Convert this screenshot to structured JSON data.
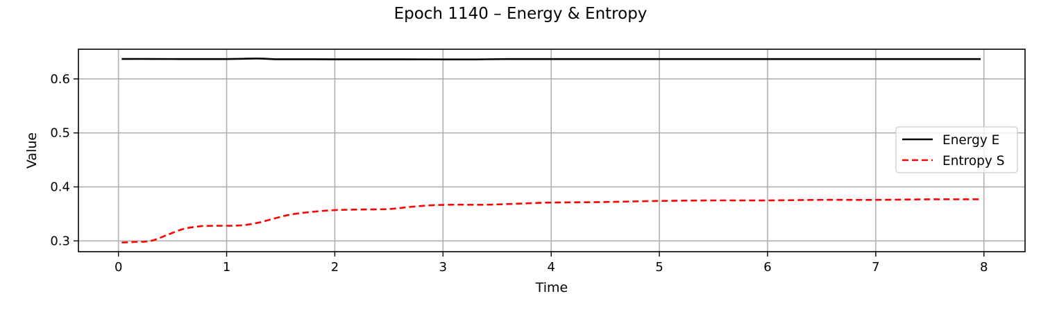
{
  "chart_data": {
    "type": "line",
    "title": "Epoch 1140 – Energy & Entropy",
    "xlabel": "Time",
    "ylabel": "Value",
    "xlim": [
      -0.37,
      8.38
    ],
    "ylim": [
      0.28,
      0.655
    ],
    "xticks": [
      0,
      1,
      2,
      3,
      4,
      5,
      6,
      7,
      8
    ],
    "xtick_labels": [
      "0",
      "1",
      "2",
      "3",
      "4",
      "5",
      "6",
      "7",
      "8"
    ],
    "yticks": [
      0.3,
      0.4,
      0.5,
      0.6
    ],
    "ytick_labels": [
      "0.3",
      "0.4",
      "0.5",
      "0.6"
    ],
    "grid": true,
    "legend_position": "center-right",
    "series": [
      {
        "name": "Energy E",
        "color": "#000000",
        "style": "solid",
        "x": [
          0.03,
          0.3,
          0.6,
          0.9,
          1.0,
          1.15,
          1.27,
          1.35,
          1.45,
          1.7,
          2.0,
          2.5,
          3.0,
          3.3,
          3.55,
          4.0,
          5.0,
          6.0,
          7.0,
          7.97
        ],
        "y": [
          0.637,
          0.637,
          0.6368,
          0.6368,
          0.6368,
          0.6373,
          0.6378,
          0.6374,
          0.6365,
          0.6365,
          0.6363,
          0.6363,
          0.6362,
          0.6362,
          0.6367,
          0.6368,
          0.6368,
          0.6368,
          0.6368,
          0.6368
        ]
      },
      {
        "name": "Entropy S",
        "color": "#ff0000",
        "style": "dashed",
        "x": [
          0.03,
          0.15,
          0.3,
          0.45,
          0.6,
          0.75,
          0.9,
          1.0,
          1.15,
          1.3,
          1.45,
          1.6,
          1.8,
          2.0,
          2.2,
          2.5,
          2.7,
          2.9,
          3.1,
          3.4,
          3.7,
          4.0,
          4.5,
          5.0,
          5.5,
          6.0,
          6.5,
          7.0,
          7.5,
          7.97
        ],
        "y": [
          0.297,
          0.298,
          0.3,
          0.311,
          0.322,
          0.327,
          0.328,
          0.328,
          0.329,
          0.334,
          0.342,
          0.349,
          0.354,
          0.357,
          0.358,
          0.359,
          0.363,
          0.366,
          0.367,
          0.367,
          0.369,
          0.371,
          0.372,
          0.374,
          0.375,
          0.375,
          0.376,
          0.376,
          0.377,
          0.377
        ]
      }
    ]
  }
}
